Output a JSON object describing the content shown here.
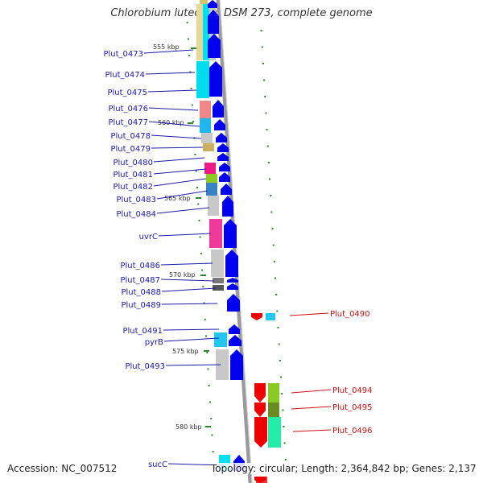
{
  "title": "Chlorobium luteolum DSM 273, complete genome",
  "footer": {
    "accession": "Accession: NC_007512",
    "stats": "Topology: circular; Length: 2,364,842 bp; Genes: 2,137"
  },
  "colors": {
    "left_label": "#1a1aaa",
    "right_label": "#cc1111",
    "forward_arrow": "#0000ee",
    "reverse_arrow": "#ee0000",
    "backbone": "#999999",
    "tick": "#2a8a2a",
    "strand_arrow": "#ffffff"
  },
  "tick_labels": [
    "555 kbp",
    "560 kbp",
    "565 kbp",
    "570 kbp",
    "575 kbp",
    "580 kbp"
  ],
  "genes_left": [
    {
      "name": "Plut_0473"
    },
    {
      "name": "Plut_0474"
    },
    {
      "name": "Plut_0475"
    },
    {
      "name": "Plut_0476"
    },
    {
      "name": "Plut_0477"
    },
    {
      "name": "Plut_0478"
    },
    {
      "name": "Plut_0479"
    },
    {
      "name": "Plut_0480"
    },
    {
      "name": "Plut_0481"
    },
    {
      "name": "Plut_0482"
    },
    {
      "name": "Plut_0483"
    },
    {
      "name": "Plut_0484"
    },
    {
      "name": "uvrC"
    },
    {
      "name": "Plut_0486"
    },
    {
      "name": "Plut_0487"
    },
    {
      "name": "Plut_0488"
    },
    {
      "name": "Plut_0489"
    },
    {
      "name": "Plut_0491"
    },
    {
      "name": "pyrB"
    },
    {
      "name": "Plut_0493"
    },
    {
      "name": "sucC"
    }
  ],
  "genes_right": [
    {
      "name": "Plut_0490"
    },
    {
      "name": "Plut_0494"
    },
    {
      "name": "Plut_0495"
    },
    {
      "name": "Plut_0496"
    }
  ]
}
